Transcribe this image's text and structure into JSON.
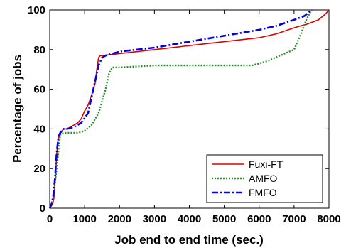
{
  "chart_data": {
    "type": "line",
    "title": "",
    "xlabel": "Job end to end time (sec.)",
    "ylabel": "Percentage of jobs",
    "xlim": [
      0,
      8000
    ],
    "ylim": [
      0,
      100
    ],
    "xticks": [
      0,
      1000,
      2000,
      3000,
      4000,
      5000,
      6000,
      7000,
      8000
    ],
    "yticks": [
      0,
      20,
      40,
      60,
      80,
      100
    ],
    "grid": false,
    "legend_position": "bottom-right",
    "series": [
      {
        "name": "Fuxi-FT",
        "color": "#e00000",
        "dash": "solid",
        "x": [
          0,
          40,
          80,
          120,
          160,
          200,
          240,
          300,
          400,
          500,
          600,
          700,
          800,
          900,
          1000,
          1100,
          1200,
          1300,
          1350,
          1400,
          1450,
          1500,
          2000,
          3000,
          4000,
          5000,
          6000,
          6500,
          7000,
          7400,
          7700,
          7900,
          8000
        ],
        "y": [
          0,
          1,
          2,
          5,
          15,
          27,
          35,
          38,
          40,
          40,
          41,
          42,
          43,
          45,
          49,
          52,
          57,
          63,
          70,
          76,
          77,
          77,
          78,
          80,
          82,
          84,
          86,
          88,
          91,
          93,
          95,
          98,
          100
        ]
      },
      {
        "name": "AMFO",
        "color": "#2e8b2e",
        "dash": "dotted",
        "x": [
          0,
          100,
          200,
          300,
          400,
          600,
          800,
          1000,
          1200,
          1400,
          1600,
          1700,
          1800,
          2000,
          3000,
          4000,
          5000,
          5800,
          6200,
          6600,
          7000,
          7200,
          7350,
          7500
        ],
        "y": [
          0,
          5,
          20,
          37,
          38,
          38,
          38,
          39,
          42,
          48,
          60,
          68,
          71,
          71,
          72,
          72,
          72,
          72,
          74,
          77,
          80,
          88,
          95,
          100
        ]
      },
      {
        "name": "FMFO",
        "color": "#0000e0",
        "dash": "dashdot",
        "x": [
          0,
          50,
          100,
          150,
          200,
          250,
          300,
          400,
          500,
          700,
          900,
          1100,
          1200,
          1300,
          1400,
          1500,
          1600,
          2000,
          3000,
          4000,
          5000,
          6000,
          6500,
          7000,
          7300,
          7500
        ],
        "y": [
          0,
          2,
          6,
          15,
          28,
          36,
          38,
          40,
          40,
          41,
          43,
          48,
          56,
          64,
          72,
          76,
          77,
          79,
          81,
          84,
          87,
          90,
          92,
          95,
          97,
          100
        ]
      }
    ]
  }
}
